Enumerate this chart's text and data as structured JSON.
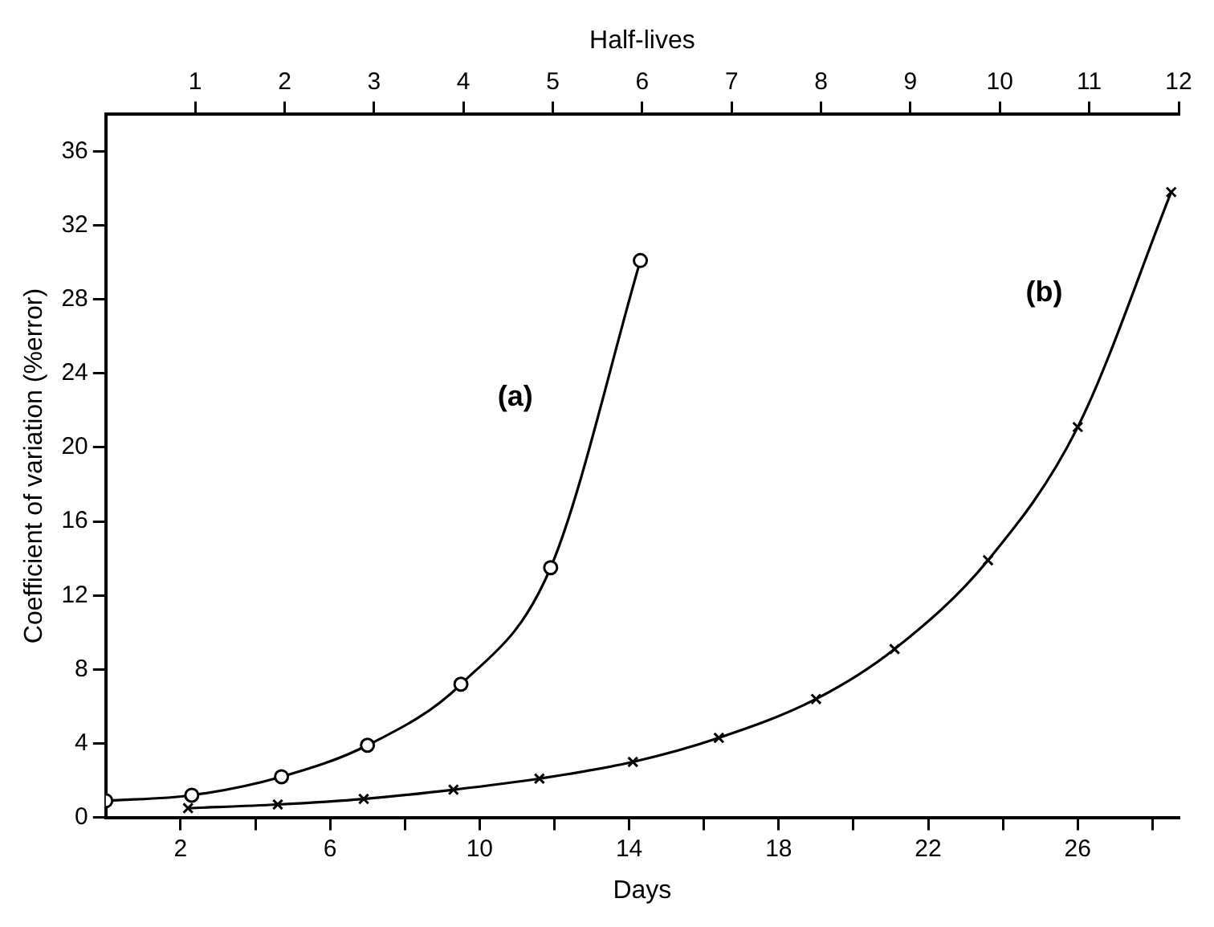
{
  "chart_data": {
    "type": "line",
    "xlabel": "Days",
    "ylabel": "Coefficient of variation (%error)",
    "x2label": "Half-lives",
    "xlim": [
      0,
      28.7
    ],
    "xticks": [
      {
        "value": 2,
        "label": "2"
      },
      {
        "value": 4,
        "label": null
      },
      {
        "value": 6,
        "label": "6"
      },
      {
        "value": 8,
        "label": null
      },
      {
        "value": 10,
        "label": "10"
      },
      {
        "value": 12,
        "label": null
      },
      {
        "value": 14,
        "label": "14"
      },
      {
        "value": 16,
        "label": null
      },
      {
        "value": 18,
        "label": "18"
      },
      {
        "value": 20,
        "label": null
      },
      {
        "value": 22,
        "label": "22"
      },
      {
        "value": 24,
        "label": null
      },
      {
        "value": 26,
        "label": "26"
      },
      {
        "value": 28,
        "label": null
      }
    ],
    "x2lim": [
      0,
      12
    ],
    "x2ticks": [
      1,
      2,
      3,
      4,
      5,
      6,
      7,
      8,
      9,
      10,
      11,
      12
    ],
    "ylim": [
      0,
      38
    ],
    "yticks": [
      0,
      4,
      8,
      12,
      16,
      20,
      24,
      28,
      32,
      36
    ],
    "grid": false,
    "legend": false,
    "series": [
      {
        "name": "(a)",
        "color": "#000000",
        "marker": "circle",
        "x": [
          0,
          2.3,
          4.7,
          7.0,
          9.5,
          11.9,
          14.3
        ],
        "values": [
          0.9,
          1.2,
          2.2,
          3.9,
          7.2,
          13.5,
          30.1
        ]
      },
      {
        "name": "(b)",
        "color": "#000000",
        "marker": "cross",
        "x": [
          2.2,
          4.6,
          6.9,
          9.3,
          11.6,
          14.1,
          16.4,
          19.0,
          21.1,
          23.6,
          26.0,
          28.5
        ],
        "values": [
          0.5,
          0.7,
          1.0,
          1.5,
          2.1,
          3.0,
          4.3,
          6.4,
          9.1,
          13.9,
          21.1,
          33.8
        ]
      }
    ]
  }
}
